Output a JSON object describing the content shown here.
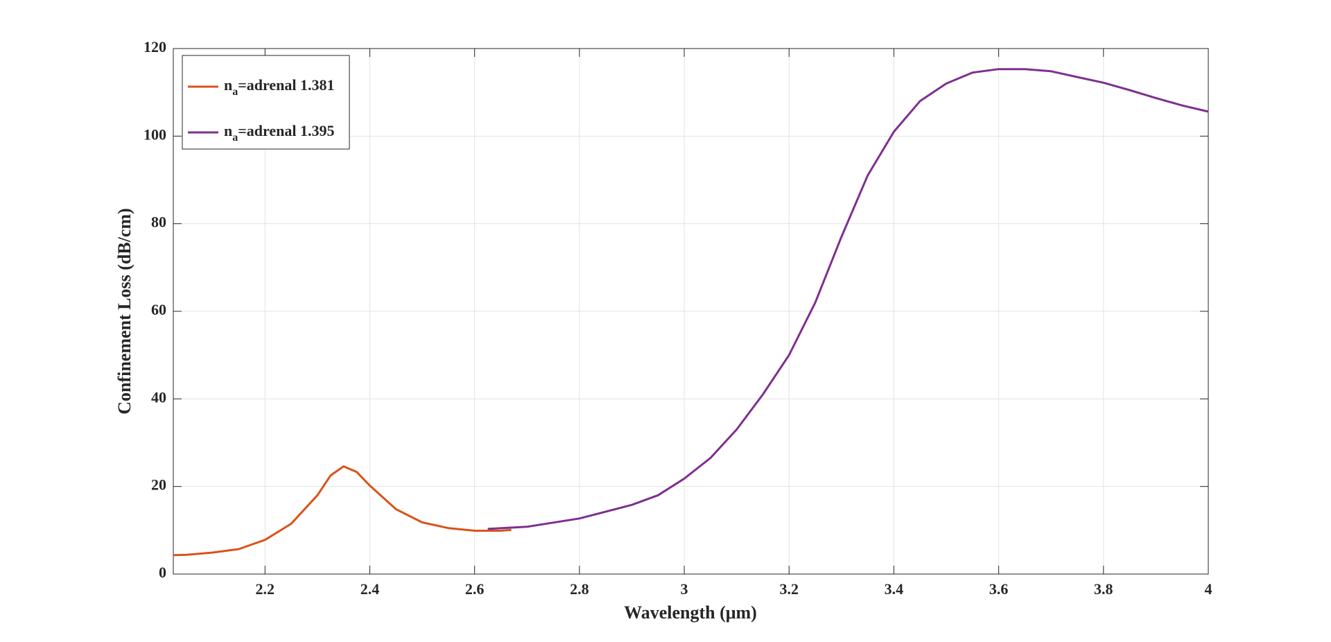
{
  "chart_data": {
    "type": "line",
    "x_label": "Wavelength (μm)",
    "y_label": "Confinement Loss (dB/cm)",
    "xlim": [
      2.025,
      4
    ],
    "ylim": [
      0,
      120
    ],
    "xticks": [
      2.2,
      2.4,
      2.6,
      2.8,
      3,
      3.2,
      3.4,
      3.6,
      3.8,
      4
    ],
    "yticks": [
      0,
      20,
      40,
      60,
      80,
      100,
      120
    ],
    "grid": true,
    "legend": "top-left",
    "series": [
      {
        "name": "na=adrenal 1.381",
        "color": "#d95319",
        "x": [
          2.025,
          2.05,
          2.1,
          2.15,
          2.2,
          2.25,
          2.3,
          2.325,
          2.35,
          2.375,
          2.4,
          2.45,
          2.5,
          2.55,
          2.6,
          2.65,
          2.67
        ],
        "values": [
          4.3,
          4.4,
          4.9,
          5.7,
          7.8,
          11.5,
          18,
          22.5,
          24.6,
          23.3,
          20.2,
          14.8,
          11.8,
          10.5,
          9.9,
          9.9,
          10.1
        ]
      },
      {
        "name": "na=adrenal 1.395",
        "color": "#7e2f8e",
        "x": [
          2.625,
          2.7,
          2.8,
          2.9,
          2.95,
          3.0,
          3.05,
          3.1,
          3.15,
          3.2,
          3.25,
          3.3,
          3.35,
          3.4,
          3.45,
          3.5,
          3.55,
          3.6,
          3.65,
          3.7,
          3.75,
          3.8,
          3.85,
          3.9,
          3.95,
          4.0
        ],
        "values": [
          10.3,
          10.8,
          12.7,
          15.8,
          18,
          21.8,
          26.5,
          33,
          41,
          50,
          62,
          77,
          91,
          101,
          108,
          112,
          114.5,
          115.3,
          115.3,
          114.8,
          113.5,
          112.2,
          110.5,
          108.7,
          107,
          105.6
        ]
      }
    ]
  }
}
